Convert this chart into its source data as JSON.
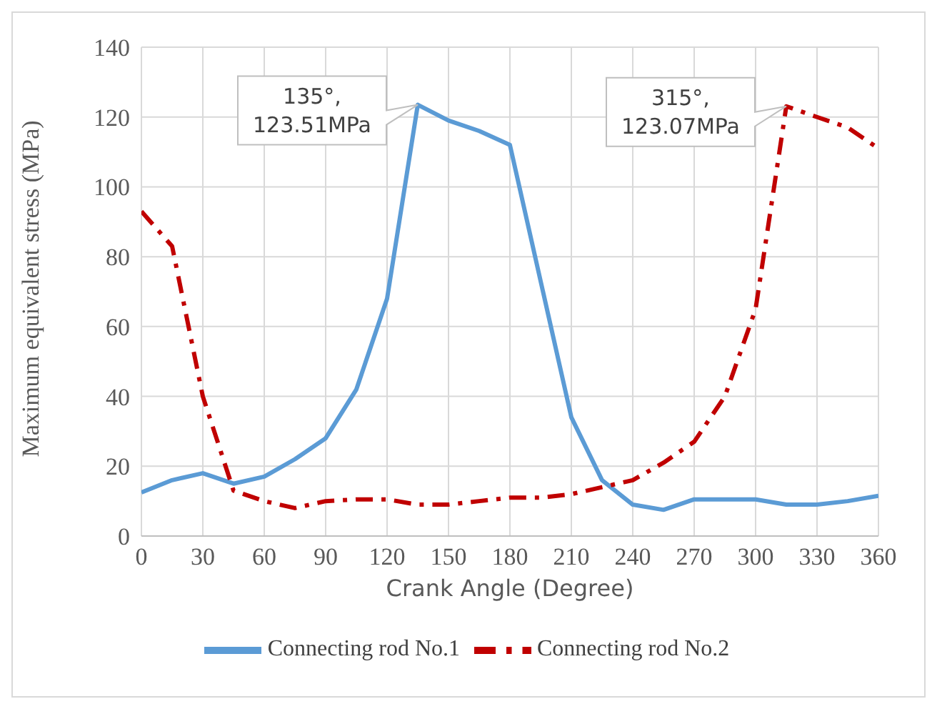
{
  "chart_data": {
    "type": "line",
    "xlabel": "Crank Angle (Degree)",
    "ylabel": "Maximum equivalent stress (MPa)",
    "x": [
      0,
      15,
      30,
      45,
      60,
      75,
      90,
      105,
      120,
      135,
      150,
      165,
      180,
      195,
      210,
      225,
      240,
      255,
      270,
      285,
      300,
      315,
      330,
      345,
      360
    ],
    "series": [
      {
        "name": "Connecting rod No.1",
        "color": "#5b9bd5",
        "line_style": "solid",
        "values": [
          12.5,
          16,
          18,
          15,
          17,
          22,
          28,
          42,
          68,
          123.51,
          119,
          116,
          112,
          73,
          34,
          16,
          9,
          7.5,
          10.5,
          10.5,
          10.5,
          9,
          9,
          10,
          11.5
        ]
      },
      {
        "name": "Connecting rod No.2",
        "color": "#c00000",
        "line_style": "dashed",
        "values": [
          93,
          83,
          40,
          13,
          10,
          8,
          10,
          10.5,
          10.5,
          9,
          9,
          10,
          11,
          11,
          12,
          14,
          16,
          21,
          27,
          40,
          65,
          123.07,
          120,
          117,
          111
        ]
      }
    ],
    "xlim": [
      0,
      360
    ],
    "xticks": [
      0,
      30,
      60,
      90,
      120,
      150,
      180,
      210,
      240,
      270,
      300,
      330,
      360
    ],
    "ylim": [
      0,
      140
    ],
    "yticks": [
      0,
      20,
      40,
      60,
      80,
      100,
      120,
      140
    ],
    "grid": true,
    "legend": "bottom",
    "marker": "none",
    "annotations": [
      {
        "text": "135°,\n123.51MPa",
        "x": 135,
        "y": 123.51
      },
      {
        "text": "315°,\n123.07MPa",
        "x": 315,
        "y": 123.07
      }
    ]
  }
}
